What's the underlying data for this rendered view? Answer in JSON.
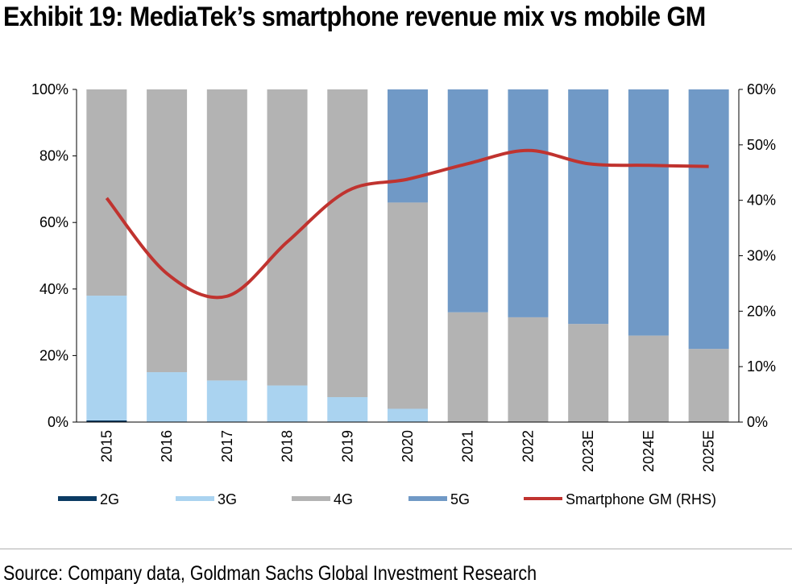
{
  "title": "Exhibit 19: MediaTek’s smartphone revenue mix vs mobile GM",
  "source": "Source: Company data, Goldman Sachs Global Investment Research",
  "chart_data": {
    "type": "bar",
    "stacked": true,
    "categories": [
      "2015",
      "2016",
      "2017",
      "2018",
      "2019",
      "2020",
      "2021",
      "2022",
      "2023E",
      "2024E",
      "2025E"
    ],
    "series": [
      {
        "name": "2G",
        "color": "#0b3b63",
        "axis": "left",
        "values": [
          0.5,
          0,
          0,
          0,
          0,
          0,
          0,
          0,
          0,
          0,
          0
        ]
      },
      {
        "name": "3G",
        "color": "#aad3f0",
        "axis": "left",
        "values": [
          37.5,
          15,
          12.5,
          11,
          7.5,
          4,
          0,
          0,
          0,
          0,
          0
        ]
      },
      {
        "name": "4G",
        "color": "#b3b3b3",
        "axis": "left",
        "values": [
          62,
          85,
          87.5,
          89,
          92.5,
          62,
          33,
          31.5,
          29.5,
          26,
          22
        ]
      },
      {
        "name": "5G",
        "color": "#7099c6",
        "axis": "left",
        "values": [
          0,
          0,
          0,
          0,
          0,
          34,
          67,
          68.5,
          70.5,
          74,
          78
        ]
      },
      {
        "name": "Smartphone GM (RHS)",
        "type": "line",
        "color": "#c0332f",
        "axis": "right",
        "values": [
          40.4,
          26.8,
          22.7,
          32.5,
          41.7,
          43.8,
          46.6,
          49.0,
          46.6,
          46.3,
          46.1
        ]
      }
    ],
    "yticks_left": [
      "0%",
      "20%",
      "40%",
      "60%",
      "80%",
      "100%"
    ],
    "yticks_right": [
      "0%",
      "10%",
      "20%",
      "30%",
      "40%",
      "50%",
      "60%"
    ],
    "ylim_left": [
      0,
      100
    ],
    "ylim_right": [
      0,
      60
    ],
    "legend_position": "bottom",
    "grid": false
  }
}
